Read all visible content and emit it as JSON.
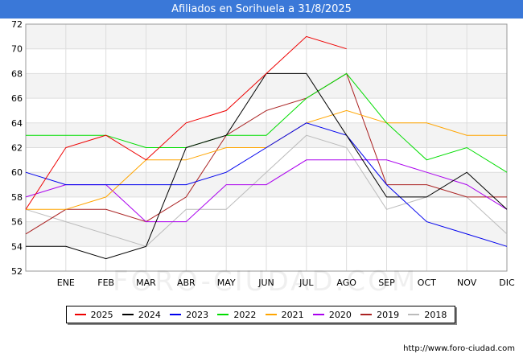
{
  "title": "Afiliados en Sorihuela a 31/8/2025",
  "source_text": "http://www.foro-ciudad.com",
  "watermark_text": "FORO-CIUDAD.COM",
  "chart_data": {
    "type": "line",
    "title": "Afiliados en Sorihuela a 31/8/2025",
    "xlabel": "",
    "ylabel": "",
    "x_labels": [
      "",
      "ENE",
      "FEB",
      "MAR",
      "ABR",
      "MAY",
      "JUN",
      "JUL",
      "AGO",
      "SEP",
      "OCT",
      "NOV",
      "DIC"
    ],
    "y_ticks": [
      52,
      54,
      56,
      58,
      60,
      62,
      64,
      66,
      68,
      70,
      72
    ],
    "ylim": [
      52,
      72
    ],
    "grid": true,
    "legend_position": "bottom",
    "series": [
      {
        "name": "2025",
        "color": "#ee0000",
        "values": [
          57,
          62,
          63,
          61,
          64,
          65,
          68,
          71,
          70,
          null,
          null,
          null,
          null
        ]
      },
      {
        "name": "2024",
        "color": "#000000",
        "values": [
          54,
          54,
          53,
          54,
          62,
          63,
          68,
          68,
          63,
          58,
          58,
          60,
          57
        ]
      },
      {
        "name": "2023",
        "color": "#0000ee",
        "values": [
          60,
          59,
          59,
          59,
          59,
          60,
          62,
          64,
          63,
          59,
          56,
          55,
          54
        ]
      },
      {
        "name": "2022",
        "color": "#00dd00",
        "values": [
          63,
          63,
          63,
          62,
          62,
          63,
          63,
          66,
          68,
          64,
          61,
          62,
          60
        ]
      },
      {
        "name": "2021",
        "color": "#ffa500",
        "values": [
          57,
          57,
          58,
          61,
          61,
          62,
          62,
          64,
          65,
          64,
          64,
          63,
          63
        ]
      },
      {
        "name": "2020",
        "color": "#aa00ee",
        "values": [
          58,
          59,
          59,
          56,
          56,
          59,
          59,
          61,
          61,
          61,
          60,
          59,
          57
        ]
      },
      {
        "name": "2019",
        "color": "#aa2222",
        "values": [
          55,
          57,
          57,
          56,
          58,
          63,
          65,
          66,
          68,
          59,
          59,
          58,
          58
        ]
      },
      {
        "name": "2018",
        "color": "#bbbbbb",
        "values": [
          57,
          56,
          55,
          54,
          57,
          57,
          60,
          63,
          62,
          57,
          58,
          58,
          55
        ]
      }
    ]
  }
}
